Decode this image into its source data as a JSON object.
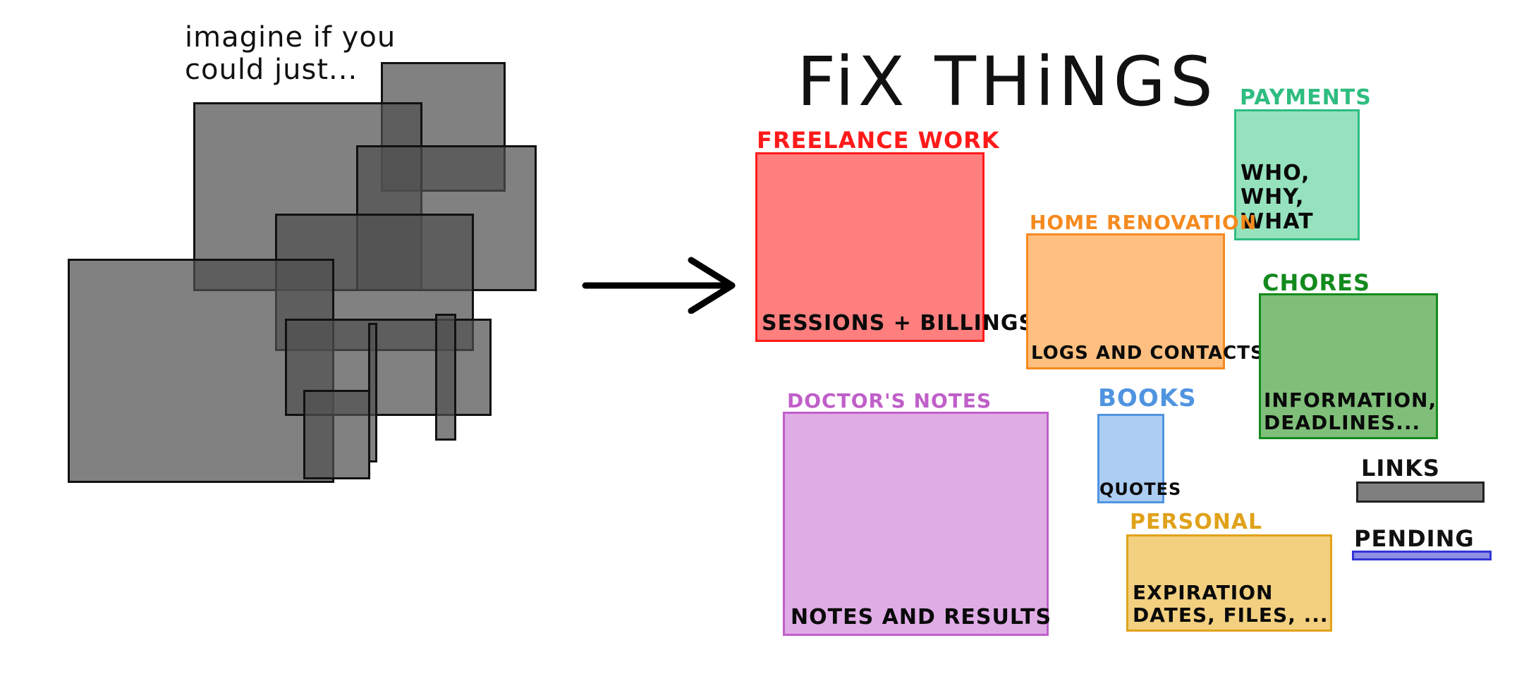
{
  "intro_text": "imagine if you could just...",
  "title": "FiX THiNGS",
  "categories": {
    "freelance": {
      "label": "FREELANCE WORK",
      "desc": "SESSIONS + BILLINGS",
      "color": "#ff1a1a",
      "fill": "#ff7f7f"
    },
    "payments": {
      "label": "PAYMENTS",
      "desc": "WHO, WHY, WHAT",
      "color": "#2ebd80",
      "fill": "#96e2bf"
    },
    "home": {
      "label": "HOME RENOVATION",
      "desc": "LOGS AND CONTACTS",
      "color": "#f58a1f",
      "fill": "#ffbf80"
    },
    "chores": {
      "label": "CHORES",
      "desc": "INFORMATION, DEADLINES...",
      "color": "#138a1c",
      "fill": "#80bf7a"
    },
    "doctor": {
      "label": "DOCTOR'S NOTES",
      "desc": "NOTES AND RESULTS",
      "color": "#c05fc9",
      "fill": "#e0ace6"
    },
    "books": {
      "label": "BOOKS",
      "desc": "QUOTES",
      "color": "#4f94e0",
      "fill": "#abcdf2"
    },
    "links": {
      "label": "LINKS",
      "desc": "",
      "color": "#222222",
      "fill": "#7f7f7f"
    },
    "personal": {
      "label": "PERSONAL",
      "desc": "EXPIRATION DATES, FILES, ...",
      "color": "#e0a21a",
      "fill": "#f2d080"
    },
    "pending": {
      "label": "PENDING",
      "desc": "",
      "color": "#3434d6",
      "fill": "#8f8fe6"
    }
  },
  "icons": {
    "arrow": "arrow-right-icon"
  }
}
